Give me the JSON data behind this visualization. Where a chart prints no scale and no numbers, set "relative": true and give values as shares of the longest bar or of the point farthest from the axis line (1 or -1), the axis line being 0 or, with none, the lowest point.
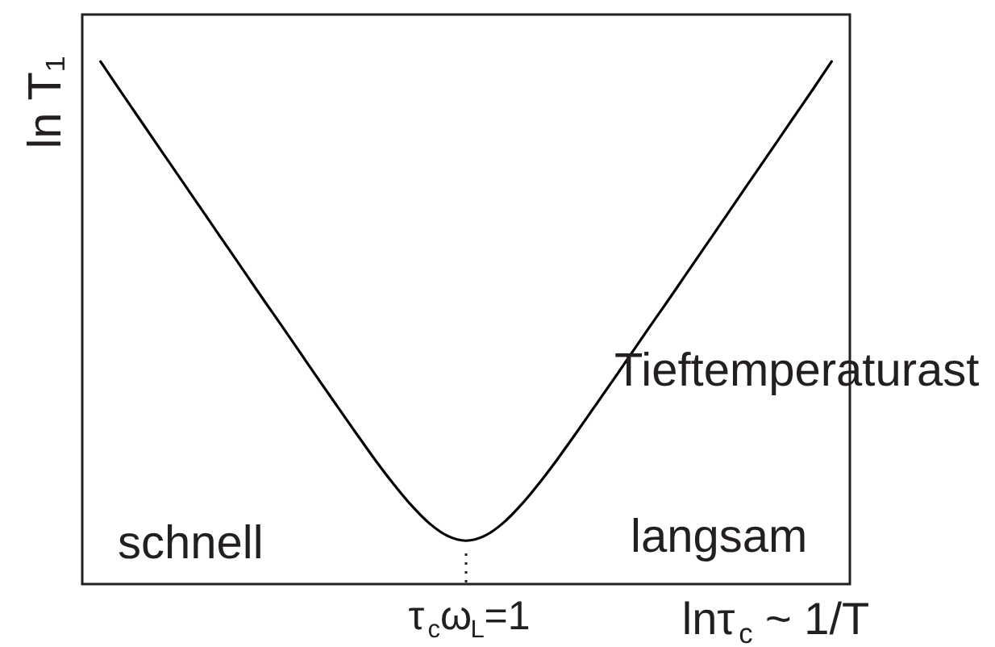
{
  "chart_data": {
    "type": "line",
    "relative": true,
    "xlabel": "lnτ$_{c}$ ~ 1/T",
    "ylabel": "ln T₁",
    "categories": [
      null,
      null,
      null,
      null,
      null,
      null,
      null,
      null,
      null,
      null,
      null,
      null,
      null,
      null,
      null,
      null,
      null,
      null,
      null,
      null,
      null,
      null,
      null,
      null,
      null,
      null,
      null,
      null,
      null,
      null,
      null,
      null,
      null,
      null,
      null,
      null,
      null,
      null,
      null,
      null,
      null
    ],
    "color": "#000000",
    "values": [
      1,
      0.948,
      0.897,
      0.846,
      0.795,
      0.744,
      0.693,
      0.642,
      0.591,
      0.54,
      0.49,
      0.439,
      0.388,
      0.338,
      0.288,
      0.239,
      0.193,
      0.151,
      0.116,
      0.092,
      0.083,
      0.092,
      0.116,
      0.151,
      0.193,
      0.239,
      0.288,
      0.338,
      0.388,
      0.439,
      0.49,
      0.54,
      0.591,
      0.642,
      0.693,
      0.744,
      0.795,
      0.846,
      0.897,
      0.948,
      1
    ],
    "annotations": [
      "schnell",
      "langsam",
      "Tieftemperaturast",
      "τ$_{c}$ω$_{L}$=1"
    ]
  }
}
